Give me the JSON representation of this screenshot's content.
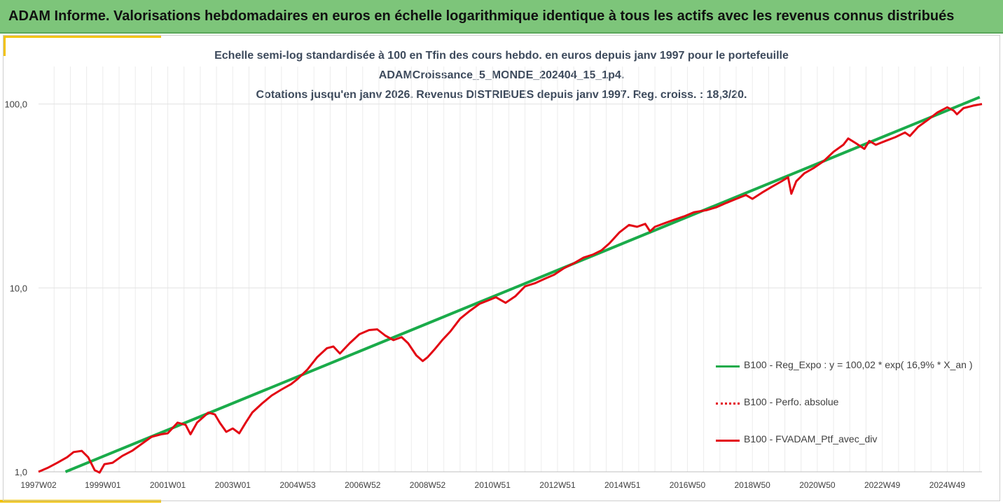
{
  "banner": {
    "title": "ADAM Informe. Valorisations hebdomadaires en euros en échelle logarithmique identique à tous les actifs avec les revenus connus distribués"
  },
  "colors": {
    "banner_bg": "#7dc57a",
    "accent": "#f2c200",
    "regression": "#1aab4a",
    "portfolio": "#e30613",
    "title_text": "#3d4a5c"
  },
  "chart_data": {
    "type": "line",
    "title_lines": [
      "Echelle semi-log standardisée à 100 en Tfin des cours hebdo.  en euros depuis janv 1997 pour le portefeuille",
      "ADAMCroissance_5_MONDE_202404_15_1p4.",
      "Cotations jusqu'en janv 2026. Revenus DISTRIBUES depuis janv 1997. Reg. croiss. : 18,3/20."
    ],
    "y_scale": "log",
    "ylim": [
      1,
      160
    ],
    "y_ticks": [
      {
        "value": 1,
        "label": "1,0"
      },
      {
        "value": 10,
        "label": "10,0"
      },
      {
        "value": 100,
        "label": "100,0"
      }
    ],
    "xlim": [
      1997.02,
      2026.07
    ],
    "x_ticks": [
      {
        "x": 1997.02,
        "label": "1997W02"
      },
      {
        "x": 1999.0,
        "label": "1999W01"
      },
      {
        "x": 2001.0,
        "label": "2001W01"
      },
      {
        "x": 2003.0,
        "label": "2003W01"
      },
      {
        "x": 2005.0,
        "label": "2004W53"
      },
      {
        "x": 2007.0,
        "label": "2006W52"
      },
      {
        "x": 2009.0,
        "label": "2008W52"
      },
      {
        "x": 2011.0,
        "label": "2010W51"
      },
      {
        "x": 2013.0,
        "label": "2012W51"
      },
      {
        "x": 2015.0,
        "label": "2014W51"
      },
      {
        "x": 2017.0,
        "label": "2016W50"
      },
      {
        "x": 2019.0,
        "label": "2018W50"
      },
      {
        "x": 2021.0,
        "label": "2020W50"
      },
      {
        "x": 2023.0,
        "label": "2022W49"
      },
      {
        "x": 2025.0,
        "label": "2024W49"
      }
    ],
    "grid": {
      "vertical": true,
      "horizontal": true
    },
    "legend_position": "right",
    "series": [
      {
        "name": "B100 - Reg_Expo : y = 100,02 * exp( 16,9% *  X_an )",
        "style": "solid",
        "color": "#1aab4a",
        "points": [
          [
            1997.85,
            1.0
          ],
          [
            2026.0,
            109.0
          ]
        ]
      },
      {
        "name": "B100 - Perfo. absolue",
        "style": "dotted",
        "color": "#e30613",
        "points": []
      },
      {
        "name": "B100 - FVADAM_Ptf_avec_div",
        "style": "solid",
        "color": "#e30613",
        "points": [
          [
            1997.02,
            1.0
          ],
          [
            1997.3,
            1.05
          ],
          [
            1997.6,
            1.12
          ],
          [
            1997.9,
            1.2
          ],
          [
            1998.1,
            1.28
          ],
          [
            1998.35,
            1.3
          ],
          [
            1998.55,
            1.2
          ],
          [
            1998.75,
            1.02
          ],
          [
            1998.9,
            0.99
          ],
          [
            1999.05,
            1.1
          ],
          [
            1999.3,
            1.12
          ],
          [
            1999.6,
            1.22
          ],
          [
            1999.9,
            1.3
          ],
          [
            2000.2,
            1.42
          ],
          [
            2000.5,
            1.55
          ],
          [
            2000.8,
            1.6
          ],
          [
            2001.0,
            1.62
          ],
          [
            2001.3,
            1.85
          ],
          [
            2001.55,
            1.8
          ],
          [
            2001.7,
            1.6
          ],
          [
            2001.9,
            1.85
          ],
          [
            2002.25,
            2.1
          ],
          [
            2002.45,
            2.05
          ],
          [
            2002.6,
            1.85
          ],
          [
            2002.8,
            1.65
          ],
          [
            2003.0,
            1.72
          ],
          [
            2003.2,
            1.62
          ],
          [
            2003.4,
            1.85
          ],
          [
            2003.6,
            2.1
          ],
          [
            2003.9,
            2.35
          ],
          [
            2004.2,
            2.6
          ],
          [
            2004.5,
            2.8
          ],
          [
            2004.8,
            3.0
          ],
          [
            2005.0,
            3.2
          ],
          [
            2005.3,
            3.6
          ],
          [
            2005.6,
            4.2
          ],
          [
            2005.9,
            4.7
          ],
          [
            2006.1,
            4.8
          ],
          [
            2006.3,
            4.4
          ],
          [
            2006.6,
            5.0
          ],
          [
            2006.9,
            5.6
          ],
          [
            2007.2,
            5.9
          ],
          [
            2007.45,
            5.95
          ],
          [
            2007.7,
            5.5
          ],
          [
            2007.95,
            5.2
          ],
          [
            2008.2,
            5.4
          ],
          [
            2008.4,
            5.0
          ],
          [
            2008.65,
            4.3
          ],
          [
            2008.85,
            4.0
          ],
          [
            2009.0,
            4.2
          ],
          [
            2009.2,
            4.6
          ],
          [
            2009.45,
            5.2
          ],
          [
            2009.7,
            5.8
          ],
          [
            2010.0,
            6.8
          ],
          [
            2010.3,
            7.5
          ],
          [
            2010.6,
            8.2
          ],
          [
            2010.9,
            8.6
          ],
          [
            2011.1,
            8.9
          ],
          [
            2011.4,
            8.3
          ],
          [
            2011.7,
            9.0
          ],
          [
            2012.0,
            10.2
          ],
          [
            2012.3,
            10.6
          ],
          [
            2012.6,
            11.2
          ],
          [
            2012.9,
            11.8
          ],
          [
            2013.2,
            12.8
          ],
          [
            2013.5,
            13.6
          ],
          [
            2013.8,
            14.6
          ],
          [
            2014.1,
            15.2
          ],
          [
            2014.35,
            16.0
          ],
          [
            2014.6,
            17.5
          ],
          [
            2014.9,
            20.0
          ],
          [
            2015.2,
            22.0
          ],
          [
            2015.45,
            21.5
          ],
          [
            2015.7,
            22.3
          ],
          [
            2015.85,
            20.3
          ],
          [
            2016.0,
            21.5
          ],
          [
            2016.3,
            22.5
          ],
          [
            2016.6,
            23.5
          ],
          [
            2016.9,
            24.5
          ],
          [
            2017.2,
            25.8
          ],
          [
            2017.6,
            26.5
          ],
          [
            2017.9,
            27.5
          ],
          [
            2018.2,
            29.0
          ],
          [
            2018.5,
            30.5
          ],
          [
            2018.8,
            32.0
          ],
          [
            2019.0,
            30.5
          ],
          [
            2019.3,
            33.0
          ],
          [
            2019.6,
            35.5
          ],
          [
            2019.9,
            38.0
          ],
          [
            2020.1,
            40.0
          ],
          [
            2020.2,
            32.5
          ],
          [
            2020.35,
            38.0
          ],
          [
            2020.6,
            42.0
          ],
          [
            2020.9,
            45.0
          ],
          [
            2021.2,
            49.0
          ],
          [
            2021.5,
            55.0
          ],
          [
            2021.8,
            60.0
          ],
          [
            2021.95,
            65.0
          ],
          [
            2022.2,
            61.0
          ],
          [
            2022.45,
            57.0
          ],
          [
            2022.6,
            63.0
          ],
          [
            2022.8,
            60.0
          ],
          [
            2023.1,
            63.0
          ],
          [
            2023.4,
            66.0
          ],
          [
            2023.7,
            70.0
          ],
          [
            2023.85,
            67.0
          ],
          [
            2024.1,
            75.0
          ],
          [
            2024.4,
            82.0
          ],
          [
            2024.7,
            90.0
          ],
          [
            2025.0,
            96.0
          ],
          [
            2025.2,
            92.0
          ],
          [
            2025.3,
            88.0
          ],
          [
            2025.5,
            95.0
          ],
          [
            2025.8,
            98.0
          ],
          [
            2026.07,
            100.0
          ]
        ]
      }
    ]
  }
}
